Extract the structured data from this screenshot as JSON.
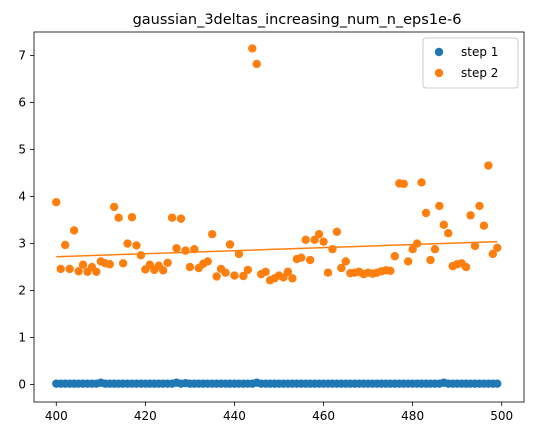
{
  "chart_data": {
    "type": "scatter",
    "title": "gaussian_3deltas_increasing_num_n_eps1e-6",
    "xlabel": "",
    "ylabel": "",
    "xlim": [
      395,
      505
    ],
    "ylim": [
      -0.37,
      7.5
    ],
    "xticks": [
      400,
      420,
      440,
      460,
      480,
      500
    ],
    "yticks": [
      0,
      1,
      2,
      3,
      4,
      5,
      6,
      7
    ],
    "grid": false,
    "legend_position": "top-right",
    "colors": {
      "step1": "#1f77b4",
      "step2": "#ff7f0e"
    },
    "series": [
      {
        "name": "step 1",
        "color": "#1f77b4",
        "x": [
          400,
          401,
          402,
          403,
          404,
          405,
          406,
          407,
          408,
          409,
          410,
          411,
          412,
          413,
          414,
          415,
          416,
          417,
          418,
          419,
          420,
          421,
          422,
          423,
          424,
          425,
          426,
          427,
          428,
          429,
          430,
          431,
          432,
          433,
          434,
          435,
          436,
          437,
          438,
          439,
          440,
          441,
          442,
          443,
          444,
          445,
          446,
          447,
          448,
          449,
          450,
          451,
          452,
          453,
          454,
          455,
          456,
          457,
          458,
          459,
          460,
          461,
          462,
          463,
          464,
          465,
          466,
          467,
          468,
          469,
          470,
          471,
          472,
          473,
          474,
          475,
          476,
          477,
          478,
          479,
          480,
          481,
          482,
          483,
          484,
          485,
          486,
          487,
          488,
          489,
          490,
          491,
          492,
          493,
          494,
          495,
          496,
          497,
          498,
          499
        ],
        "y": [
          0.02,
          0.02,
          0.02,
          0.02,
          0.02,
          0.02,
          0.02,
          0.02,
          0.02,
          0.02,
          0.04,
          0.02,
          0.02,
          0.02,
          0.02,
          0.02,
          0.02,
          0.02,
          0.02,
          0.02,
          0.02,
          0.02,
          0.02,
          0.02,
          0.02,
          0.02,
          0.02,
          0.04,
          0.02,
          0.03,
          0.02,
          0.02,
          0.02,
          0.02,
          0.02,
          0.02,
          0.02,
          0.02,
          0.02,
          0.02,
          0.02,
          0.02,
          0.02,
          0.02,
          0.02,
          0.04,
          0.02,
          0.02,
          0.02,
          0.02,
          0.02,
          0.02,
          0.02,
          0.02,
          0.02,
          0.02,
          0.02,
          0.02,
          0.02,
          0.02,
          0.02,
          0.02,
          0.02,
          0.02,
          0.02,
          0.02,
          0.02,
          0.02,
          0.02,
          0.02,
          0.02,
          0.02,
          0.02,
          0.02,
          0.02,
          0.02,
          0.02,
          0.02,
          0.02,
          0.02,
          0.02,
          0.02,
          0.02,
          0.02,
          0.02,
          0.02,
          0.02,
          0.04,
          0.02,
          0.02,
          0.02,
          0.02,
          0.02,
          0.02,
          0.02,
          0.02,
          0.02,
          0.02,
          0.02,
          0.02
        ]
      },
      {
        "name": "step 2",
        "color": "#ff7f0e",
        "x": [
          400,
          401,
          402,
          403,
          404,
          405,
          406,
          407,
          408,
          409,
          410,
          411,
          412,
          413,
          414,
          415,
          416,
          417,
          418,
          419,
          420,
          421,
          422,
          423,
          424,
          425,
          426,
          427,
          428,
          429,
          430,
          431,
          432,
          433,
          434,
          435,
          436,
          437,
          438,
          439,
          440,
          441,
          442,
          443,
          444,
          445,
          446,
          447,
          448,
          449,
          450,
          451,
          452,
          453,
          454,
          455,
          456,
          457,
          458,
          459,
          460,
          461,
          462,
          463,
          464,
          465,
          466,
          467,
          468,
          469,
          470,
          471,
          472,
          473,
          474,
          475,
          476,
          477,
          478,
          479,
          480,
          481,
          482,
          483,
          484,
          485,
          486,
          487,
          488,
          489,
          490,
          491,
          492,
          493,
          494,
          495,
          496,
          497,
          498,
          499
        ],
        "y": [
          3.88,
          2.46,
          2.97,
          2.46,
          3.28,
          2.41,
          2.55,
          2.4,
          2.5,
          2.4,
          2.62,
          2.58,
          2.56,
          3.78,
          3.55,
          2.58,
          3.0,
          3.56,
          2.96,
          2.75,
          2.45,
          2.55,
          2.44,
          2.53,
          2.43,
          2.59,
          3.55,
          2.9,
          3.53,
          2.85,
          2.5,
          2.88,
          2.48,
          2.57,
          2.62,
          3.2,
          2.3,
          2.46,
          2.38,
          2.98,
          2.32,
          2.78,
          2.31,
          2.44,
          7.15,
          6.82,
          2.35,
          2.4,
          2.22,
          2.26,
          2.32,
          2.28,
          2.4,
          2.26,
          2.67,
          2.7,
          3.08,
          2.65,
          3.08,
          3.2,
          3.04,
          2.38,
          2.88,
          3.25,
          2.48,
          2.62,
          2.37,
          2.38,
          2.4,
          2.35,
          2.38,
          2.36,
          2.38,
          2.41,
          2.43,
          2.42,
          2.73,
          4.28,
          4.27,
          2.62,
          2.88,
          3.0,
          4.3,
          3.65,
          2.65,
          2.88,
          3.8,
          3.4,
          3.22,
          2.52,
          2.56,
          2.58,
          2.5,
          3.6,
          2.95,
          3.8,
          3.38,
          4.66,
          2.78,
          2.91
        ]
      }
    ],
    "trendline": {
      "series": "step 2",
      "x": [
        400,
        499
      ],
      "y": [
        2.72,
        3.04
      ]
    }
  }
}
